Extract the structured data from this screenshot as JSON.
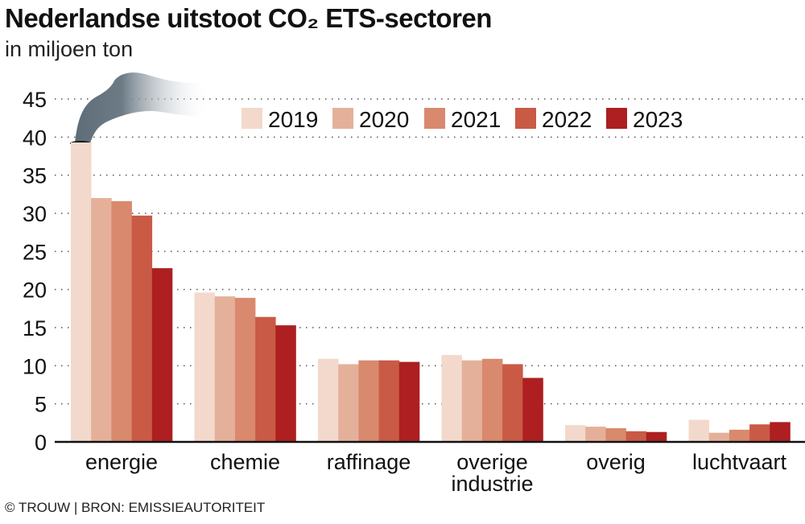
{
  "title": "Nederlandse uitstoot CO₂ ETS-sectoren",
  "subtitle": "in miljoen ton",
  "source": "© TROUW | BRON: EMISSIEAUTORITEIT",
  "chart_data": {
    "type": "bar",
    "title": "Nederlandse uitstoot CO₂ ETS-sectoren",
    "ylabel": "in miljoen ton",
    "ylim": [
      0,
      45
    ],
    "yticks": [
      0,
      5,
      10,
      15,
      20,
      25,
      30,
      35,
      40,
      45
    ],
    "grid": true,
    "legend_position": "top-right",
    "categories": [
      "energie",
      "chemie",
      "raffinage",
      "overige industrie",
      "overig",
      "luchtvaart"
    ],
    "series": [
      {
        "name": "2019",
        "color": "#f2d9cc",
        "values": [
          39.3,
          19.6,
          10.9,
          11.4,
          2.2,
          2.9
        ]
      },
      {
        "name": "2020",
        "color": "#e5b09a",
        "values": [
          32.0,
          19.1,
          10.2,
          10.7,
          2.0,
          1.2
        ]
      },
      {
        "name": "2021",
        "color": "#d9896d",
        "values": [
          31.6,
          18.9,
          10.7,
          10.9,
          1.8,
          1.6
        ]
      },
      {
        "name": "2022",
        "color": "#c95a45",
        "values": [
          29.7,
          16.4,
          10.7,
          10.2,
          1.4,
          2.3
        ]
      },
      {
        "name": "2023",
        "color": "#ad1f20",
        "values": [
          22.8,
          15.3,
          10.5,
          8.4,
          1.3,
          2.6
        ]
      }
    ]
  }
}
